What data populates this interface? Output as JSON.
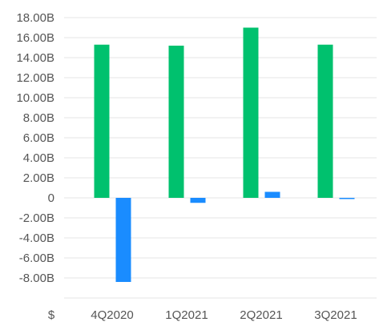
{
  "chart_data": {
    "type": "bar",
    "title": "",
    "xlabel": "",
    "ylabel": "",
    "currency_symbol": "$",
    "categories": [
      "4Q2020",
      "1Q2021",
      "2Q2021",
      "3Q2021"
    ],
    "series": [
      {
        "values": [
          15.3,
          15.2,
          17.0,
          15.3
        ],
        "color": "#00c16e"
      },
      {
        "values": [
          -8.4,
          -0.5,
          0.6,
          -0.1
        ],
        "color": "#1a8cff"
      }
    ],
    "ylim": [
      -10,
      18
    ],
    "y_ticks": [
      18,
      16,
      14,
      12,
      10,
      8,
      6,
      4,
      2,
      0,
      -2,
      -4,
      -6,
      -8
    ],
    "y_tick_labels": [
      "18.00B",
      "16.00B",
      "14.00B",
      "12.00B",
      "10.00B",
      "8.00B",
      "6.00B",
      "4.00B",
      "2.00B",
      "0",
      "-2.00B",
      "-4.00B",
      "-6.00B",
      "-8.00B"
    ],
    "grid": true,
    "legend": "none",
    "colors": {
      "grid": "#e6e6e6",
      "axis_text": "#555555"
    }
  }
}
